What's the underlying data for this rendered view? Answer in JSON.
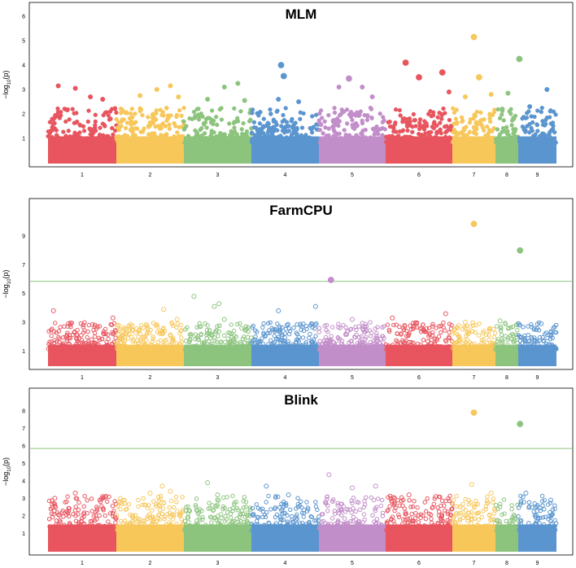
{
  "chart_data": [
    {
      "type": "scatter",
      "subtype": "manhattan",
      "title": "MLM",
      "ylabel": "-log10(p)",
      "xlabel": "",
      "ylim": [
        0,
        6.5
      ],
      "yticks": [
        1,
        2,
        3,
        4,
        5,
        6
      ],
      "threshold": null,
      "marker": "filled",
      "chromosomes": [
        "1",
        "2",
        "3",
        "4",
        "5",
        "6",
        "7",
        "8",
        "9"
      ],
      "bulk_max": 1.5,
      "top_hits": [
        {
          "chr": "1",
          "pos": 0.15,
          "value": 3.15
        },
        {
          "chr": "1",
          "pos": 0.4,
          "value": 3.05
        },
        {
          "chr": "1",
          "pos": 0.62,
          "value": 2.7
        },
        {
          "chr": "1",
          "pos": 0.8,
          "value": 2.6
        },
        {
          "chr": "2",
          "pos": 0.35,
          "value": 2.75
        },
        {
          "chr": "2",
          "pos": 0.6,
          "value": 3.0
        },
        {
          "chr": "2",
          "pos": 0.8,
          "value": 3.15
        },
        {
          "chr": "2",
          "pos": 0.92,
          "value": 2.7
        },
        {
          "chr": "3",
          "pos": 0.35,
          "value": 2.6
        },
        {
          "chr": "3",
          "pos": 0.6,
          "value": 3.1
        },
        {
          "chr": "3",
          "pos": 0.8,
          "value": 3.25
        },
        {
          "chr": "3",
          "pos": 0.9,
          "value": 2.55
        },
        {
          "chr": "4",
          "pos": 0.4,
          "value": 2.6
        },
        {
          "chr": "4",
          "pos": 0.44,
          "value": 4.0
        },
        {
          "chr": "4",
          "pos": 0.48,
          "value": 3.55
        },
        {
          "chr": "4",
          "pos": 0.7,
          "value": 2.5
        },
        {
          "chr": "5",
          "pos": 0.3,
          "value": 3.1
        },
        {
          "chr": "5",
          "pos": 0.45,
          "value": 3.45
        },
        {
          "chr": "5",
          "pos": 0.65,
          "value": 3.1
        },
        {
          "chr": "5",
          "pos": 0.8,
          "value": 2.7
        },
        {
          "chr": "6",
          "pos": 0.3,
          "value": 4.1
        },
        {
          "chr": "6",
          "pos": 0.5,
          "value": 3.5
        },
        {
          "chr": "6",
          "pos": 0.85,
          "value": 3.7
        },
        {
          "chr": "6",
          "pos": 0.95,
          "value": 2.9
        },
        {
          "chr": "7",
          "pos": 0.3,
          "value": 2.7
        },
        {
          "chr": "7",
          "pos": 0.5,
          "value": 5.15
        },
        {
          "chr": "7",
          "pos": 0.62,
          "value": 3.5
        },
        {
          "chr": "7",
          "pos": 0.9,
          "value": 2.8
        },
        {
          "chr": "8",
          "pos": 0.3,
          "value": 2.2
        },
        {
          "chr": "8",
          "pos": 0.55,
          "value": 2.85
        },
        {
          "chr": "8",
          "pos": 1.05,
          "value": 4.25
        },
        {
          "chr": "9",
          "pos": 0.3,
          "value": 2.3
        },
        {
          "chr": "9",
          "pos": 0.75,
          "value": 3.0
        }
      ]
    },
    {
      "type": "scatter",
      "subtype": "manhattan",
      "title": "FarmCPU",
      "ylabel": "-log10(p)",
      "xlabel": "",
      "ylim": [
        0,
        11.5
      ],
      "yticks": [
        1,
        3,
        5,
        7,
        9
      ],
      "threshold": 5.85,
      "marker": "open",
      "chromosomes": [
        "1",
        "2",
        "3",
        "4",
        "5",
        "6",
        "7",
        "8",
        "9"
      ],
      "bulk_max": 2.0,
      "top_hits": [
        {
          "chr": "1",
          "pos": 0.08,
          "value": 3.8
        },
        {
          "chr": "1",
          "pos": 0.3,
          "value": 2.9
        },
        {
          "chr": "1",
          "pos": 0.95,
          "value": 3.3
        },
        {
          "chr": "2",
          "pos": 0.7,
          "value": 3.9
        },
        {
          "chr": "2",
          "pos": 0.9,
          "value": 3.2
        },
        {
          "chr": "3",
          "pos": 0.15,
          "value": 4.8
        },
        {
          "chr": "3",
          "pos": 0.45,
          "value": 4.1
        },
        {
          "chr": "3",
          "pos": 0.52,
          "value": 4.3
        },
        {
          "chr": "3",
          "pos": 0.6,
          "value": 3.2
        },
        {
          "chr": "4",
          "pos": 0.4,
          "value": 3.8
        },
        {
          "chr": "4",
          "pos": 0.95,
          "value": 4.1
        },
        {
          "chr": "5",
          "pos": 0.18,
          "value": 5.95
        },
        {
          "chr": "5",
          "pos": 0.5,
          "value": 3.2
        },
        {
          "chr": "6",
          "pos": 0.1,
          "value": 3.3
        },
        {
          "chr": "6",
          "pos": 0.9,
          "value": 3.6
        },
        {
          "chr": "7",
          "pos": 0.5,
          "value": 9.85
        },
        {
          "chr": "7",
          "pos": 0.3,
          "value": 3.0
        },
        {
          "chr": "8",
          "pos": 0.2,
          "value": 3.1
        },
        {
          "chr": "8",
          "pos": 1.08,
          "value": 8.0
        },
        {
          "chr": "9",
          "pos": 0.6,
          "value": 2.9
        }
      ]
    },
    {
      "type": "scatter",
      "subtype": "manhattan",
      "title": "Blink",
      "ylabel": "-log10(p)",
      "xlabel": "",
      "ylim": [
        0,
        9.2
      ],
      "yticks": [
        1,
        2,
        3,
        4,
        5,
        6,
        7,
        8
      ],
      "threshold": 5.85,
      "marker": "open",
      "chromosomes": [
        "1",
        "2",
        "3",
        "4",
        "5",
        "6",
        "7",
        "8",
        "9"
      ],
      "bulk_max": 2.1,
      "top_hits": [
        {
          "chr": "1",
          "pos": 0.1,
          "value": 3.0
        },
        {
          "chr": "1",
          "pos": 0.4,
          "value": 3.3
        },
        {
          "chr": "1",
          "pos": 0.8,
          "value": 3.1
        },
        {
          "chr": "2",
          "pos": 0.5,
          "value": 3.3
        },
        {
          "chr": "2",
          "pos": 0.68,
          "value": 3.7
        },
        {
          "chr": "2",
          "pos": 0.8,
          "value": 3.4
        },
        {
          "chr": "3",
          "pos": 0.35,
          "value": 3.9
        },
        {
          "chr": "3",
          "pos": 0.5,
          "value": 3.2
        },
        {
          "chr": "4",
          "pos": 0.22,
          "value": 3.7
        },
        {
          "chr": "4",
          "pos": 0.55,
          "value": 3.2
        },
        {
          "chr": "5",
          "pos": 0.15,
          "value": 4.35
        },
        {
          "chr": "5",
          "pos": 0.5,
          "value": 3.6
        },
        {
          "chr": "5",
          "pos": 0.85,
          "value": 3.7
        },
        {
          "chr": "6",
          "pos": 0.35,
          "value": 3.2
        },
        {
          "chr": "6",
          "pos": 0.75,
          "value": 3.1
        },
        {
          "chr": "7",
          "pos": 0.5,
          "value": 7.9
        },
        {
          "chr": "7",
          "pos": 0.45,
          "value": 3.8
        },
        {
          "chr": "7",
          "pos": 0.9,
          "value": 3.3
        },
        {
          "chr": "8",
          "pos": 1.08,
          "value": 7.25
        },
        {
          "chr": "9",
          "pos": 0.2,
          "value": 3.3
        },
        {
          "chr": "9",
          "pos": 0.85,
          "value": 2.9
        }
      ]
    }
  ],
  "colors": {
    "chr1": "#e8555f",
    "chr2": "#f7c75a",
    "chr3": "#8cc47e",
    "chr4": "#5b95cf",
    "chr5": "#c28ec9",
    "chr6": "#e8555f",
    "chr7": "#f7c75a",
    "chr8": "#8cc47e",
    "chr9": "#5b95cf",
    "threshold": "#8cc47e",
    "frame": "#000000"
  }
}
